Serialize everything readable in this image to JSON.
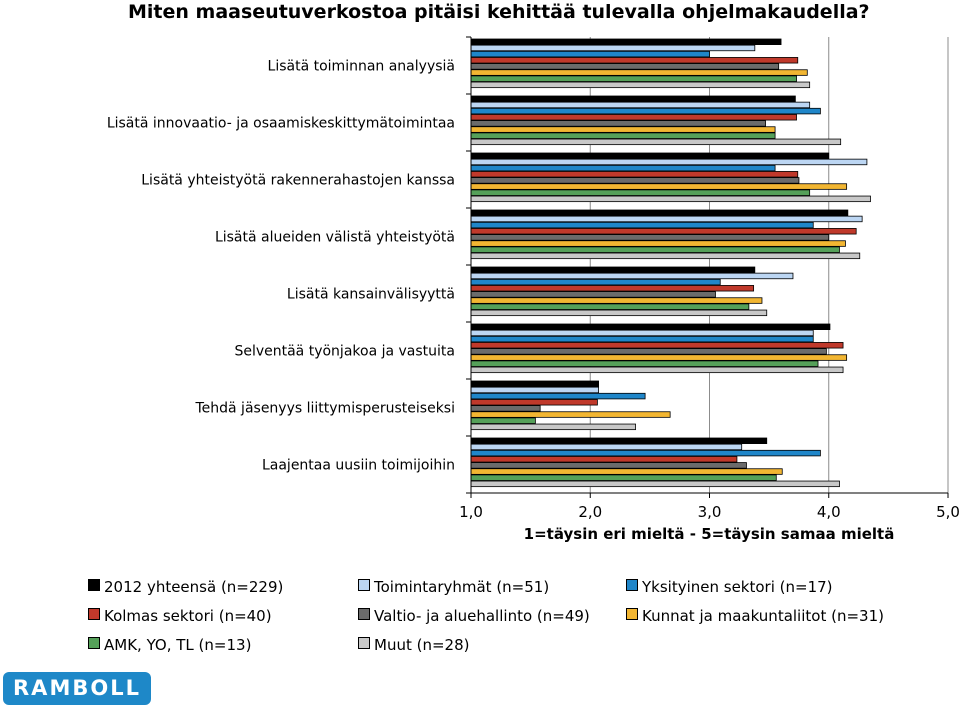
{
  "title": "Miten maaseutuverkostoa pitäisi kehittää tulevalla ohjelmakaudella?",
  "chart_data": {
    "type": "bar",
    "orientation": "horizontal",
    "categories": [
      "Lisätä toiminnan analyysiä",
      "Lisätä innovaatio- ja osaamiskeskittymätoimintaa",
      "Lisätä yhteistyötä rakennerahastojen kanssa",
      "Lisätä alueiden välistä yhteistyötä",
      "Lisätä kansainvälisyyttä",
      "Selventää työnjakoa ja vastuita",
      "Tehdä jäsenyys liittymisperusteiseksi",
      "Laajentaa uusiin toimijoihin"
    ],
    "series": [
      {
        "name": "2012 yhteensä (n=229)",
        "color": "#000000",
        "values": [
          3.6,
          3.72,
          4.0,
          4.16,
          3.38,
          4.01,
          2.07,
          3.48
        ]
      },
      {
        "name": "Toimintaryhmät (n=51)",
        "color": "#bcd6f3",
        "values": [
          3.38,
          3.84,
          4.32,
          4.28,
          3.7,
          3.87,
          2.07,
          3.27
        ]
      },
      {
        "name": "Yksityinen sektori (n=17)",
        "color": "#1f86c9",
        "values": [
          3.0,
          3.93,
          3.55,
          3.87,
          3.09,
          3.87,
          2.46,
          3.93
        ]
      },
      {
        "name": "Kolmas sektori (n=40)",
        "color": "#c0392b",
        "values": [
          3.74,
          3.73,
          3.74,
          4.23,
          3.37,
          4.12,
          2.06,
          3.23
        ]
      },
      {
        "name": "Valtio- ja aluehallinto (n=49)",
        "color": "#6b6b6b",
        "values": [
          3.58,
          3.47,
          3.75,
          4.0,
          3.05,
          3.98,
          1.58,
          3.31
        ]
      },
      {
        "name": "Kunnat ja maakuntaliitot (n=31)",
        "color": "#f2b632",
        "values": [
          3.82,
          3.55,
          4.15,
          4.14,
          3.44,
          4.15,
          2.67,
          3.61
        ]
      },
      {
        "name": "AMK, YO, TL (n=13)",
        "color": "#55a059",
        "values": [
          3.73,
          3.55,
          3.84,
          4.09,
          3.33,
          3.91,
          1.54,
          3.56
        ]
      },
      {
        "name": "Muut (n=28)",
        "color": "#c8c8c8",
        "values": [
          3.84,
          4.1,
          4.35,
          4.26,
          3.48,
          4.12,
          2.38,
          4.09
        ]
      }
    ],
    "xlim": [
      1.0,
      5.0
    ],
    "xticks": [
      "1,0",
      "2,0",
      "3,0",
      "4,0",
      "5,0"
    ],
    "xlabel": "1=täysin eri mieltä - 5=täysin samaa mieltä",
    "grid": true,
    "legend_position": "bottom"
  },
  "logo": "RAMBOLL"
}
